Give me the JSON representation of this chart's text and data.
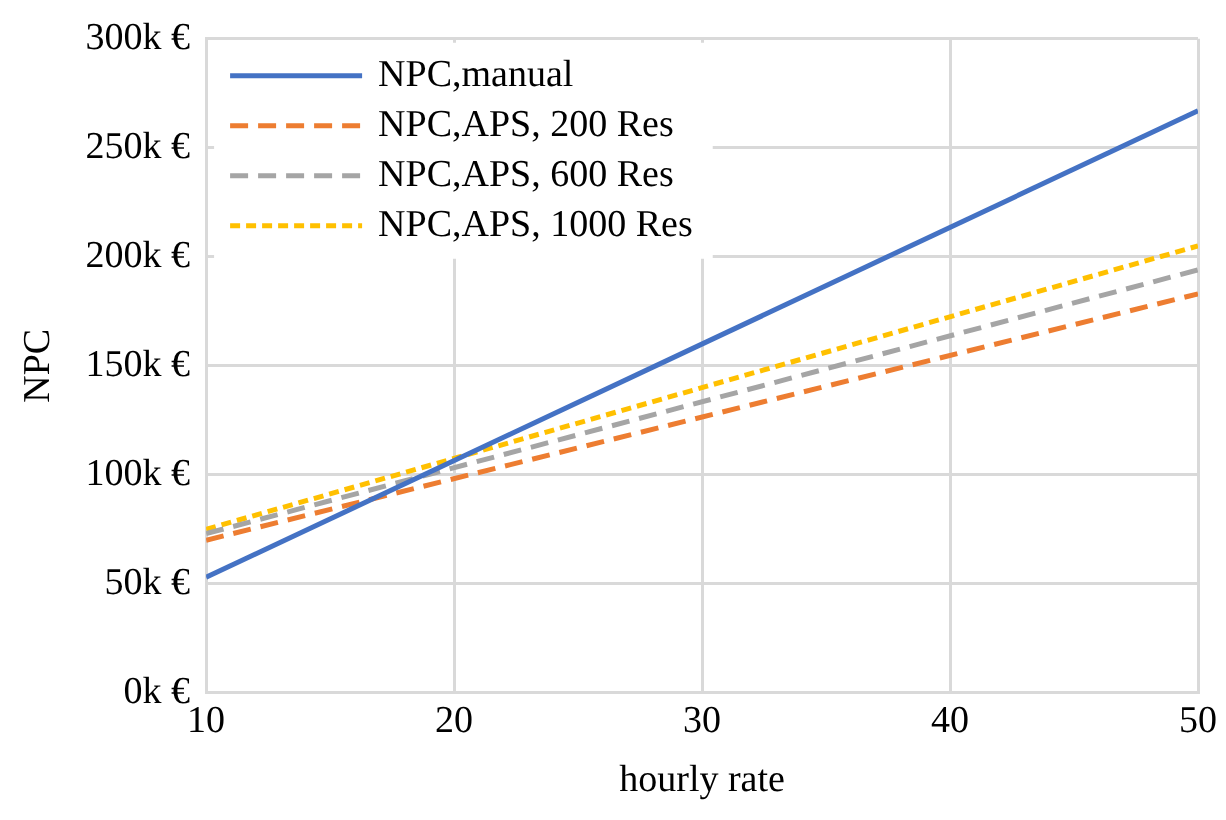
{
  "chart_data": {
    "type": "line",
    "xlabel": "hourly rate",
    "ylabel": "NPC",
    "x": [
      10,
      50
    ],
    "series": [
      {
        "name": "NPC,manual",
        "color": "#4472c4",
        "line_style": "solid",
        "values": [
          53,
          267
        ]
      },
      {
        "name": "NPC,APS, 200 Res",
        "color": "#ed7d31",
        "line_style": "dashed",
        "values": [
          70,
          183
        ]
      },
      {
        "name": "NPC,APS, 600 Res",
        "color": "#a5a5a5",
        "line_style": "dashed",
        "values": [
          73,
          194
        ]
      },
      {
        "name": "NPC,APS, 1000 Res",
        "color": "#ffc000",
        "line_style": "dotted",
        "values": [
          75,
          205
        ]
      }
    ],
    "xlim": [
      10,
      50
    ],
    "xticks": [
      10,
      20,
      30,
      40,
      50
    ],
    "ylim": [
      0,
      300
    ],
    "yticks": [
      {
        "value": 0,
        "label": "0k €"
      },
      {
        "value": 50,
        "label": "50k €"
      },
      {
        "value": 100,
        "label": "100k €"
      },
      {
        "value": 150,
        "label": "150k €"
      },
      {
        "value": 200,
        "label": "200k €"
      },
      {
        "value": 250,
        "label": "250k €"
      },
      {
        "value": 300,
        "label": "300k €"
      }
    ],
    "grid": true,
    "legend": "top left"
  }
}
